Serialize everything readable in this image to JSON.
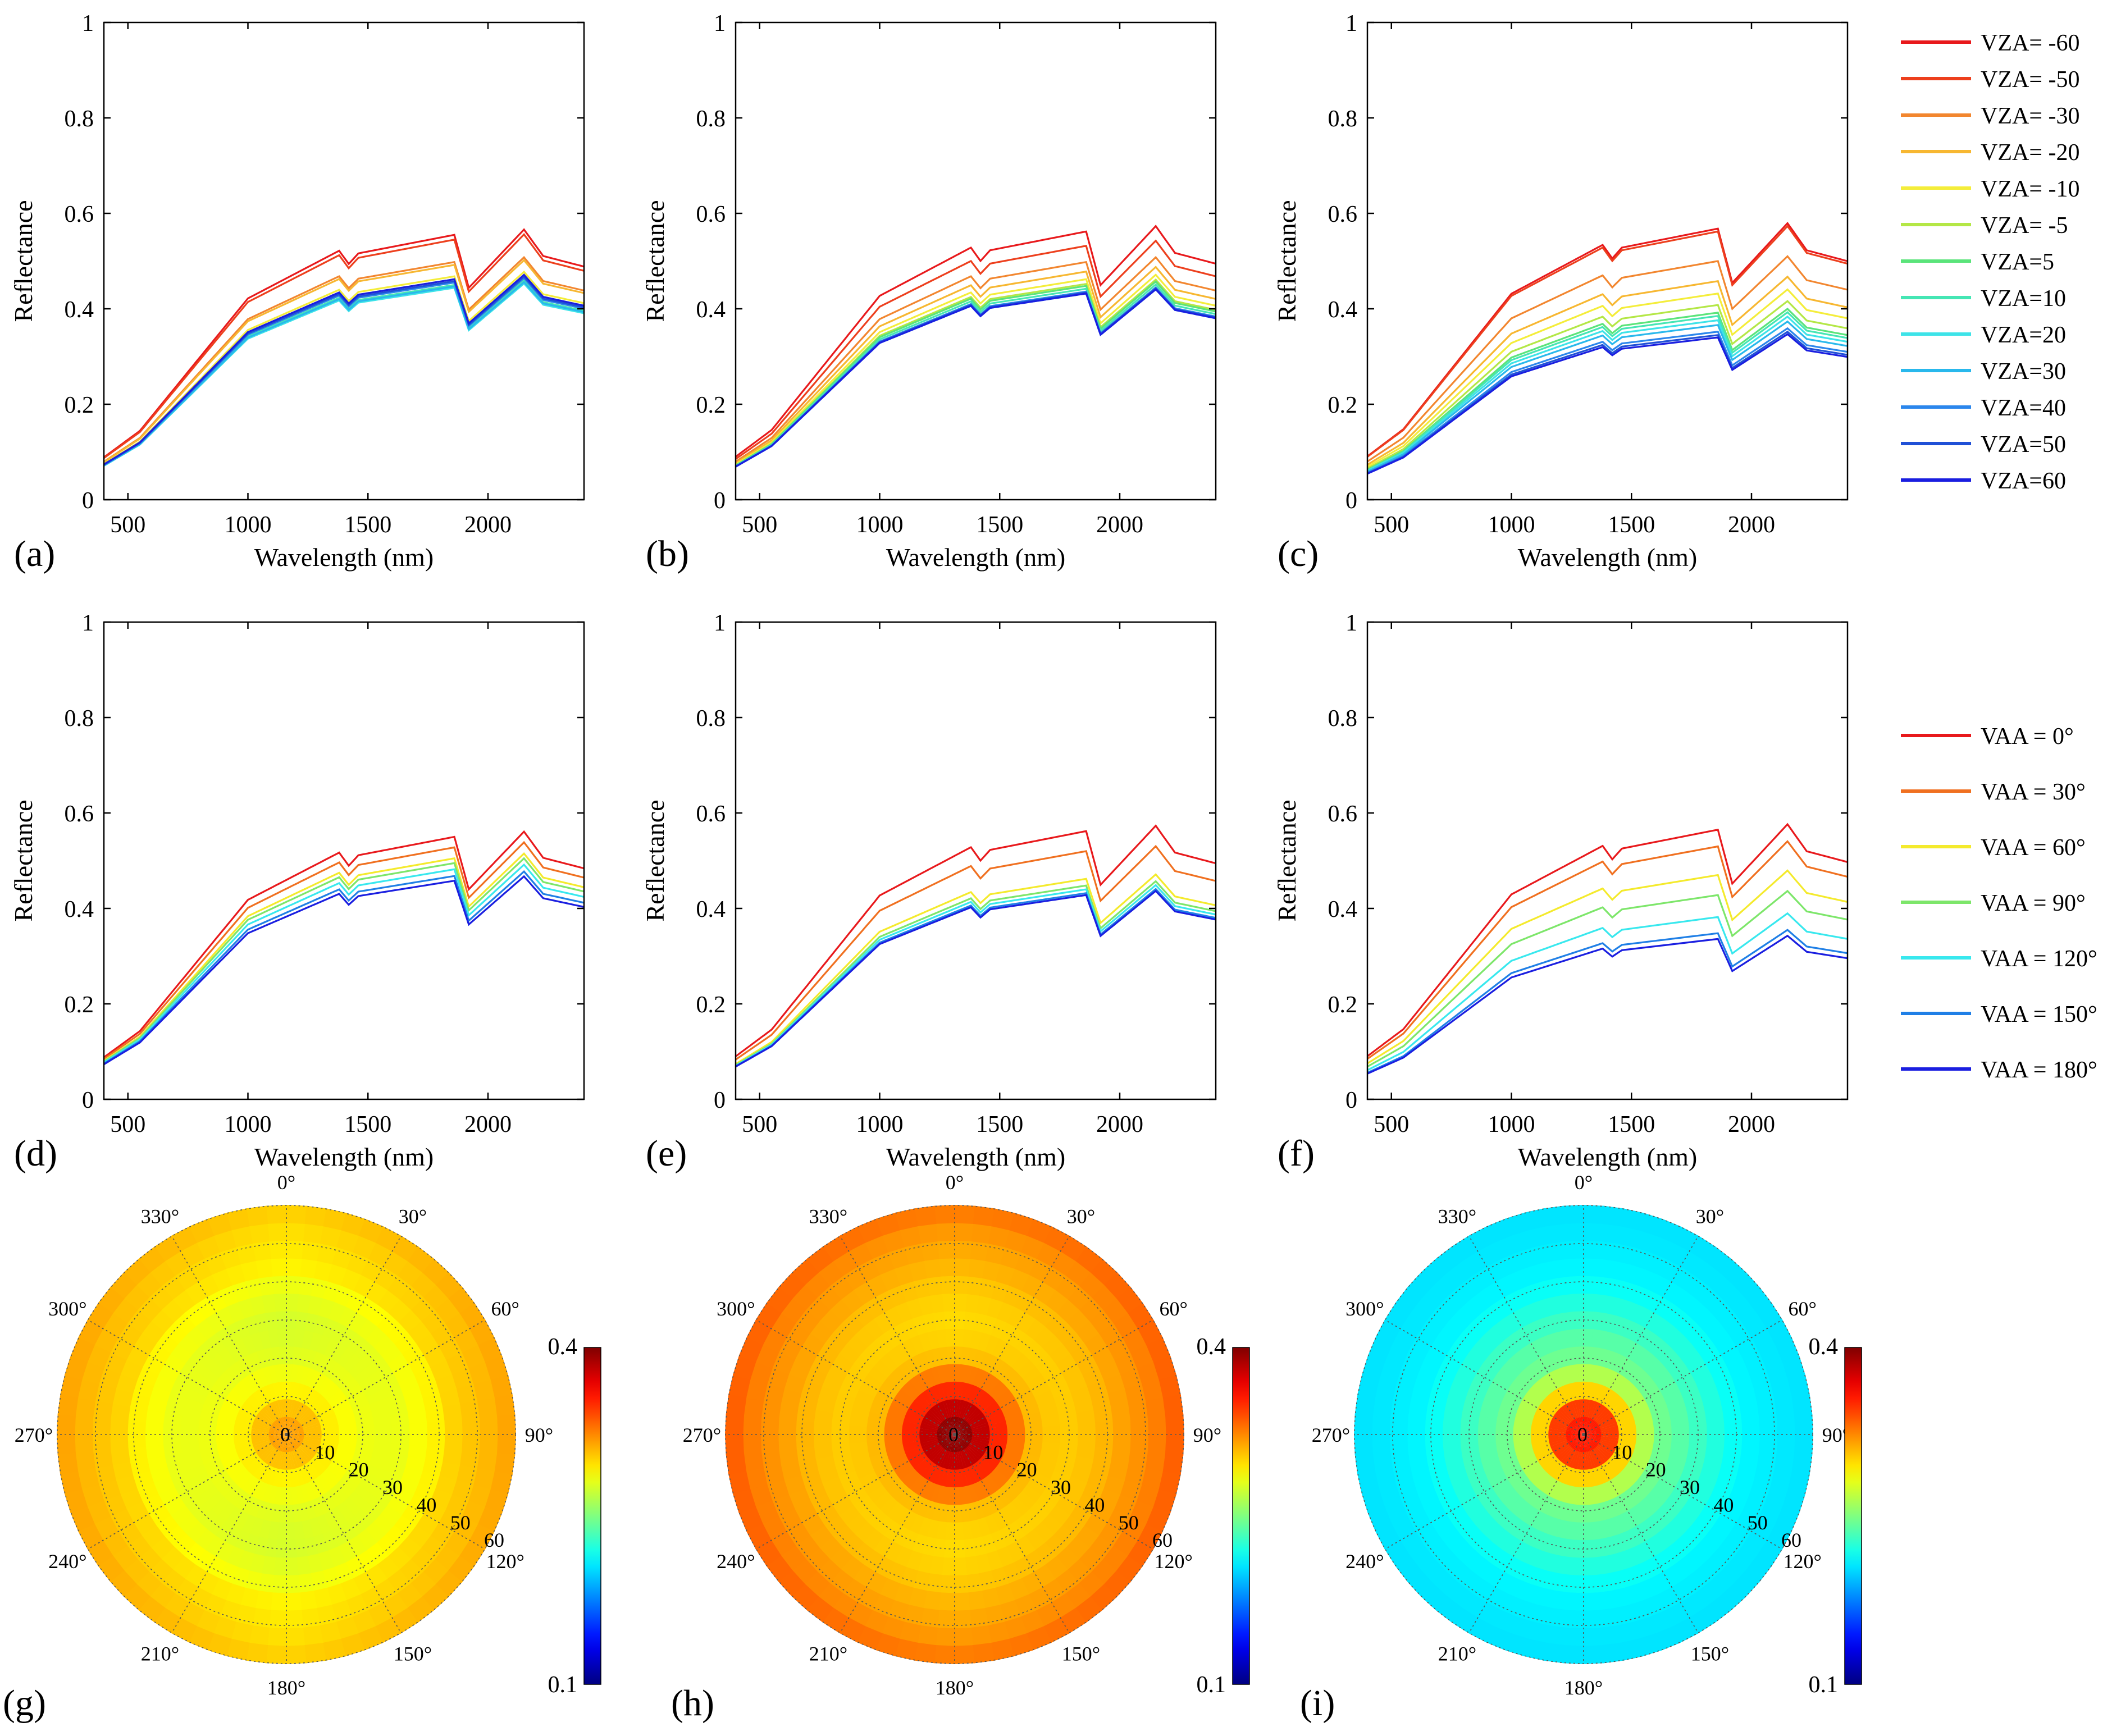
{
  "chart_data": {
    "type": "line",
    "spectral_axes": {
      "xlabel": "Wavelength (nm)",
      "ylabel": "Reflectance",
      "xlim": [
        400,
        2400
      ],
      "ylim": [
        0,
        1
      ],
      "xticks": [
        "500",
        "1000",
        "1500",
        "2000"
      ],
      "yticks": [
        "0",
        "0.2",
        "0.4",
        "0.6",
        "0.8",
        "1"
      ]
    },
    "legend_vza": {
      "entries": [
        "VZA= -60",
        "VZA= -50",
        "VZA= -30",
        "VZA= -20",
        "VZA= -10",
        "VZA= -5",
        "VZA=5",
        "VZA=10",
        "VZA=20",
        "VZA=30",
        "VZA=40",
        "VZA=50",
        "VZA=60"
      ],
      "colors": [
        "#e8191c",
        "#ed3f1d",
        "#f2862f",
        "#f7b731",
        "#f4ed3a",
        "#b4e746",
        "#5ae47a",
        "#45e6b4",
        "#3de3e8",
        "#29b8ec",
        "#2b86ec",
        "#2050d6",
        "#1a1ee0"
      ]
    },
    "legend_vaa": {
      "entries": [
        "VAA = 0°",
        "VAA = 30°",
        "VAA = 60°",
        "VAA = 90°",
        "VAA = 120°",
        "VAA = 150°",
        "VAA = 180°"
      ],
      "colors": [
        "#e8191c",
        "#f07020",
        "#f4ea2c",
        "#7de66a",
        "#38e8ee",
        "#1f7fe6",
        "#1a1ee0"
      ]
    },
    "panels": [
      {
        "label": "(a)",
        "legend": "legend_vza",
        "peak_values": [
          0.555,
          0.545,
          0.498,
          0.492,
          0.468,
          0.462,
          0.455,
          0.45,
          0.444,
          0.447,
          0.455,
          0.458,
          0.462
        ]
      },
      {
        "label": "(b)",
        "legend": "legend_vza",
        "peak_values": [
          0.562,
          0.532,
          0.498,
          0.478,
          0.462,
          0.452,
          0.448,
          0.442,
          0.436,
          0.432,
          0.436,
          0.434,
          0.432
        ]
      },
      {
        "label": "(c)",
        "legend": "legend_vza",
        "peak_values": [
          0.568,
          0.562,
          0.5,
          0.458,
          0.432,
          0.408,
          0.392,
          0.385,
          0.376,
          0.366,
          0.352,
          0.345,
          0.34
        ]
      },
      {
        "label": "(d)",
        "legend": "legend_vaa",
        "peak_values": [
          0.55,
          0.528,
          0.505,
          0.495,
          0.482,
          0.468,
          0.458
        ]
      },
      {
        "label": "(e)",
        "legend": "legend_vaa",
        "peak_values": [
          0.562,
          0.52,
          0.462,
          0.448,
          0.44,
          0.432,
          0.428
        ]
      },
      {
        "label": "(f)",
        "legend": "legend_vaa",
        "peak_values": [
          0.565,
          0.53,
          0.47,
          0.428,
          0.382,
          0.348,
          0.336
        ]
      }
    ],
    "polar": {
      "type": "heatmap",
      "angle_labels": [
        "0°",
        "30°",
        "60°",
        "90°",
        "120°",
        "150°",
        "180°",
        "210°",
        "240°",
        "270°",
        "300°",
        "330°"
      ],
      "radial_labels": [
        "0",
        "10",
        "20",
        "30",
        "40",
        "50",
        "60"
      ],
      "colorbar": {
        "min": 0.1,
        "max": 0.4,
        "min_label": "0.1",
        "max_label": "0.4"
      },
      "plots": [
        {
          "label": "(g)",
          "bands": [
            0.315,
            0.305,
            0.29,
            0.283,
            0.278,
            0.276,
            0.275,
            0.278,
            0.282,
            0.29,
            0.293,
            0.296,
            0.3
          ],
          "side_boost": 0.015
        },
        {
          "label": "(h)",
          "bands": [
            0.395,
            0.38,
            0.35,
            0.325,
            0.305,
            0.3,
            0.298,
            0.3,
            0.303,
            0.308,
            0.312,
            0.317,
            0.325
          ],
          "side_boost": 0.01
        },
        {
          "label": "(i)",
          "bands": [
            0.355,
            0.345,
            0.3,
            0.265,
            0.245,
            0.238,
            0.23,
            0.222,
            0.215,
            0.21,
            0.208,
            0.206,
            0.205
          ],
          "side_boost": 0.0
        }
      ]
    }
  }
}
